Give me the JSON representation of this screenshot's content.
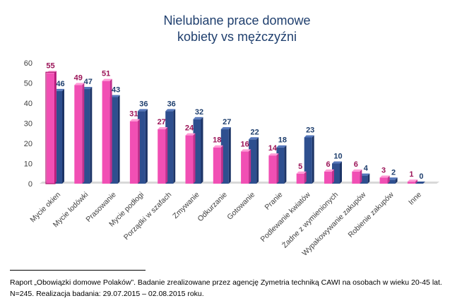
{
  "title_line1": "Nielubiane prace domowe",
  "title_line2": "kobiety vs mężczyźni",
  "footnote_line1": "Raport „Obowiązki domowe Polaków”. Badanie zrealizowane przez agencję Zymetria techniką CAWI na osobach w wieku 20-45 lat.",
  "footnote_line2": "N=245. Realizacja badania: 29.07.2015 – 02.08.2015 roku.",
  "colors": {
    "women": "#f14fb4",
    "women_highlight": "#ff9ad6",
    "men": "#2e4f8f",
    "men_highlight": "#5577bb",
    "women_label": "#9b1458",
    "men_label": "#1f3f6e",
    "axis_text": "#404040",
    "grid": "#d9d9d9",
    "floor": "#d9d9d9"
  },
  "chart_data": {
    "type": "bar",
    "title": "Nielubiane prace domowe kobiety vs mężczyźni",
    "categories": [
      "Mycie okien",
      "Mycie lodówki",
      "Prasowanie",
      "Mycie podłogi",
      "Porządki w szafach",
      "Zmywanie",
      "Odkurzanie",
      "Gotowanie",
      "Pranie",
      "Podlewanie kwiatów",
      "Żadne z wymienionych",
      "Wypakowywanie zakupów",
      "Robienie zakupów",
      "Inne"
    ],
    "series": [
      {
        "values": [
          55,
          49,
          51,
          31,
          27,
          24,
          18,
          16,
          14,
          5,
          6,
          6,
          3,
          1
        ]
      },
      {
        "values": [
          46,
          47,
          43,
          36,
          36,
          32,
          27,
          22,
          18,
          23,
          10,
          4,
          2,
          0
        ]
      }
    ],
    "ylim": [
      0,
      60
    ],
    "yticks": [
      0,
      10,
      20,
      30,
      40,
      50,
      60
    ],
    "grid": false,
    "legend": "none",
    "highlighted_category": "Mycie okien"
  }
}
